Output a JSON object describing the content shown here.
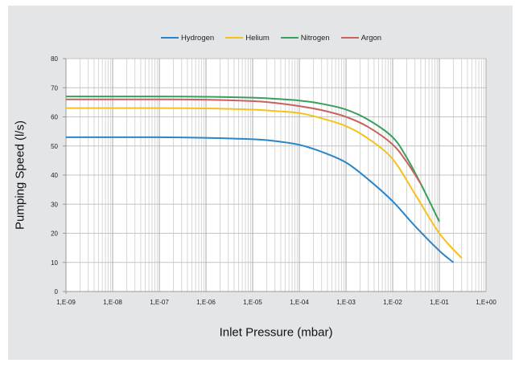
{
  "chart_data": {
    "type": "line",
    "title": "",
    "xlabel": "Inlet Pressure (mbar)",
    "ylabel": "Pumping Speed (l/s)",
    "xscale": "log",
    "xlim": [
      1e-09,
      1
    ],
    "ylim": [
      0,
      80
    ],
    "grid": true,
    "legend_position": "top-center",
    "x_tick_labels": [
      "1,E-09",
      "1,E-08",
      "1,E-07",
      "1,E-06",
      "1,E-05",
      "1,E-04",
      "1,E-03",
      "1,E-02",
      "1,E-01",
      "1,E+00"
    ],
    "x_tick_values": [
      1e-09,
      1e-08,
      1e-07,
      1e-06,
      1e-05,
      0.0001,
      0.001,
      0.01,
      0.1,
      1
    ],
    "y_tick_labels": [
      "0",
      "10",
      "20",
      "30",
      "40",
      "50",
      "60",
      "70",
      "80"
    ],
    "y_tick_values": [
      0,
      10,
      20,
      30,
      40,
      50,
      60,
      70,
      80
    ],
    "series": [
      {
        "name": "Hydrogen",
        "color": "#2a86c8",
        "x": [
          1e-09,
          1e-08,
          1e-07,
          1e-06,
          1e-05,
          3e-05,
          0.0001,
          0.0003,
          0.001,
          0.003,
          0.01,
          0.03,
          0.1,
          0.2
        ],
        "y": [
          53,
          53,
          53,
          52.8,
          52.3,
          51.7,
          50.4,
          48,
          44.3,
          38.5,
          31,
          22.5,
          14,
          10
        ]
      },
      {
        "name": "Helium",
        "color": "#f5c21a",
        "x": [
          1e-09,
          1e-08,
          1e-07,
          1e-06,
          1e-05,
          3e-05,
          0.0001,
          0.0003,
          0.001,
          0.003,
          0.01,
          0.03,
          0.1,
          0.3
        ],
        "y": [
          63,
          63,
          63,
          62.9,
          62.5,
          62,
          61.3,
          59.5,
          56.8,
          52.5,
          45.5,
          33.5,
          20,
          11.5
        ]
      },
      {
        "name": "Nitrogen",
        "color": "#3a9e5c",
        "x": [
          1e-09,
          1e-08,
          1e-07,
          1e-06,
          1e-05,
          3e-05,
          0.0001,
          0.0003,
          0.001,
          0.003,
          0.01,
          0.02,
          0.04,
          0.1
        ],
        "y": [
          67,
          67,
          67,
          66.9,
          66.6,
          66.2,
          65.6,
          64.5,
          62.5,
          59,
          53,
          46,
          37,
          24
        ]
      },
      {
        "name": "Argon",
        "color": "#c8625e",
        "x": [
          1e-09,
          1e-08,
          1e-07,
          1e-06,
          1e-05,
          3e-05,
          0.0001,
          0.0003,
          0.001,
          0.003,
          0.01,
          0.02,
          0.04
        ],
        "y": [
          66,
          66,
          66,
          65.9,
          65.4,
          64.8,
          63.7,
          62.3,
          60,
          56.5,
          50.5,
          44.5,
          37
        ]
      }
    ]
  }
}
